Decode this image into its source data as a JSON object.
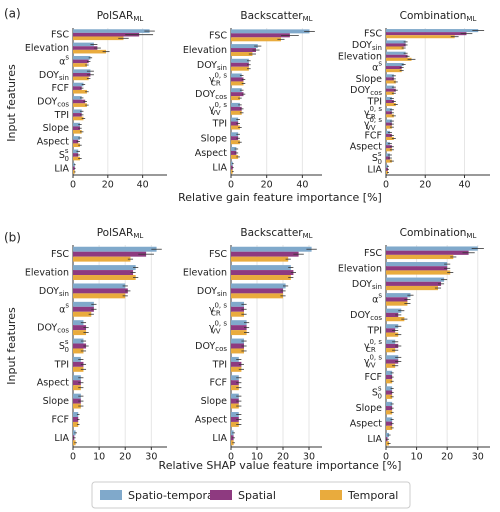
{
  "figure": {
    "rows": [
      {
        "panel_label": "(a)",
        "xlabel": "Relative gain feature importance [%]",
        "ylabel": "Input features"
      },
      {
        "panel_label": "(b)",
        "xlabel": "Relative SHAP value feature importance [%]",
        "ylabel": "Input features"
      }
    ]
  },
  "chart_data": [
    {
      "type": "hbar",
      "title": {
        "base": "PolSAR",
        "sub": "ML"
      },
      "categories": [
        {
          "base": "FSC"
        },
        {
          "base": "Elevation"
        },
        {
          "base": "α",
          "sup": "s"
        },
        {
          "base": "DOY",
          "sub": "sin"
        },
        {
          "base": "FCF"
        },
        {
          "base": "DOY",
          "sub": "cos"
        },
        {
          "base": "TPI"
        },
        {
          "base": "Slope"
        },
        {
          "base": "Aspect"
        },
        {
          "base": "S",
          "sub": "0",
          "sup": "s"
        },
        {
          "base": "LIA"
        }
      ],
      "series": [
        {
          "name": "Spatio-temporal",
          "color": "#80a9cb",
          "values": [
            44,
            12,
            10,
            10,
            6,
            5,
            5,
            4,
            4,
            3,
            1
          ],
          "errors": [
            3,
            2,
            1,
            2,
            1,
            1,
            1,
            1,
            1,
            1,
            0.5
          ]
        },
        {
          "name": "Spatial",
          "color": "#8e3a80",
          "values": [
            38,
            14,
            9,
            10,
            5,
            7,
            5,
            4,
            3,
            3,
            1
          ],
          "errors": [
            8,
            2,
            1,
            2,
            1,
            1,
            1,
            1,
            1,
            1,
            0.5
          ]
        },
        {
          "name": "Temporal",
          "color": "#e9ab3d",
          "values": [
            29,
            19,
            8,
            9,
            8,
            8,
            6,
            5,
            4,
            4,
            1
          ],
          "errors": [
            3,
            2,
            1,
            1,
            1,
            1,
            1,
            1,
            1,
            1,
            0.5
          ]
        }
      ],
      "xlim": [
        0,
        54
      ],
      "xticks": [
        0,
        20,
        40
      ],
      "grid": true
    },
    {
      "type": "hbar",
      "title": {
        "base": "Backscatter",
        "sub": "ML"
      },
      "categories": [
        {
          "base": "FSC"
        },
        {
          "base": "Elevation"
        },
        {
          "base": "DOY",
          "sub": "sin"
        },
        {
          "base": "γ",
          "sub": "CR",
          "sup": "0, s"
        },
        {
          "base": "DOY",
          "sub": "cos"
        },
        {
          "base": "γ",
          "sub": "VV",
          "sup": "0, s"
        },
        {
          "base": "TPI"
        },
        {
          "base": "Slope"
        },
        {
          "base": "Aspect"
        },
        {
          "base": "LIA"
        }
      ],
      "series": [
        {
          "name": "Spatio-temporal",
          "color": "#80a9cb",
          "values": [
            44,
            15,
            10,
            6,
            6,
            5,
            4,
            4,
            3,
            1
          ],
          "errors": [
            3,
            2,
            1,
            1,
            1,
            1,
            1,
            1,
            1,
            0.5
          ]
        },
        {
          "name": "Spatial",
          "color": "#8e3a80",
          "values": [
            33,
            14,
            10,
            7,
            7,
            6,
            4,
            4,
            3,
            1
          ],
          "errors": [
            5,
            2,
            1,
            1,
            1,
            1,
            1,
            1,
            1,
            0.5
          ]
        },
        {
          "name": "Temporal",
          "color": "#e9ab3d",
          "values": [
            28,
            12,
            10,
            7,
            5,
            6,
            5,
            5,
            4,
            1
          ],
          "errors": [
            2,
            2,
            1,
            1,
            1,
            1,
            1,
            1,
            1,
            0.5
          ]
        }
      ],
      "xlim": [
        0,
        51
      ],
      "xticks": [
        0,
        20,
        40
      ],
      "grid": true
    },
    {
      "type": "hbar",
      "title": {
        "base": "Combination",
        "sub": "ML"
      },
      "categories": [
        {
          "base": "FSC"
        },
        {
          "base": "DOY",
          "sub": "sin"
        },
        {
          "base": "Elevation"
        },
        {
          "base": "α",
          "sup": "s"
        },
        {
          "base": "Slope"
        },
        {
          "base": "DOY",
          "sub": "cos"
        },
        {
          "base": "TPI"
        },
        {
          "base": "γ",
          "sub": "CR",
          "sup": "0, s"
        },
        {
          "base": "γ",
          "sub": "VV",
          "sup": "0, s"
        },
        {
          "base": "FCF"
        },
        {
          "base": "Aspect"
        },
        {
          "base": "S",
          "sub": "0",
          "sup": "s"
        },
        {
          "base": "LIA"
        }
      ],
      "series": [
        {
          "name": "Spatio-temporal",
          "color": "#80a9cb",
          "values": [
            47,
            10,
            10,
            9,
            4,
            4,
            3,
            3,
            3,
            2,
            2,
            2,
            1
          ],
          "errors": [
            3,
            1,
            1,
            1,
            1,
            1,
            1,
            1,
            1,
            1,
            1,
            1,
            0.5
          ]
        },
        {
          "name": "Spatial",
          "color": "#8e3a80",
          "values": [
            41,
            10,
            11,
            8,
            4,
            5,
            4,
            3,
            3,
            3,
            3,
            2,
            1
          ],
          "errors": [
            3,
            1,
            1,
            1,
            1,
            1,
            1,
            1,
            1,
            1,
            1,
            1,
            0.5
          ]
        },
        {
          "name": "Temporal",
          "color": "#e9ab3d",
          "values": [
            35,
            9,
            13,
            8,
            5,
            4,
            5,
            4,
            3,
            4,
            3,
            3,
            1
          ],
          "errors": [
            2,
            1,
            2,
            1,
            1,
            1,
            1,
            1,
            1,
            1,
            1,
            1,
            0.5
          ]
        }
      ],
      "xlim": [
        0,
        53
      ],
      "xticks": [
        0,
        20,
        40
      ],
      "grid": true
    },
    {
      "type": "hbar",
      "title": {
        "base": "PolSAR",
        "sub": "ML"
      },
      "categories": [
        {
          "base": "FSC"
        },
        {
          "base": "Elevation"
        },
        {
          "base": "DOY",
          "sub": "sin"
        },
        {
          "base": "α",
          "sup": "s"
        },
        {
          "base": "DOY",
          "sub": "cos"
        },
        {
          "base": "S",
          "sub": "0",
          "sup": "s"
        },
        {
          "base": "TPI"
        },
        {
          "base": "Aspect"
        },
        {
          "base": "Slope"
        },
        {
          "base": "FCF"
        },
        {
          "base": "LIA"
        }
      ],
      "series": [
        {
          "name": "Spatio-temporal",
          "color": "#80a9cb",
          "values": [
            32,
            24,
            20,
            8,
            4,
            4,
            3,
            3,
            3,
            2,
            1
          ],
          "errors": [
            2,
            1,
            1,
            1,
            1,
            1,
            1,
            1,
            1,
            0.5,
            0.5
          ]
        },
        {
          "name": "Spatial",
          "color": "#8e3a80",
          "values": [
            28,
            23,
            21,
            8,
            5,
            5,
            4,
            3,
            3,
            2,
            0.5
          ],
          "errors": [
            3,
            1,
            1,
            1,
            1,
            1,
            1,
            1,
            1,
            0.5,
            0.5
          ]
        },
        {
          "name": "Temporal",
          "color": "#e9ab3d",
          "values": [
            22,
            24,
            20,
            7,
            5,
            4,
            4,
            3,
            3,
            2,
            1
          ],
          "errors": [
            1,
            1,
            1,
            1,
            1,
            1,
            1,
            1,
            1,
            0.5,
            0.5
          ]
        }
      ],
      "xlim": [
        0,
        36
      ],
      "xticks": [
        0,
        10,
        20,
        30
      ],
      "grid": true
    },
    {
      "type": "hbar",
      "title": {
        "base": "Backscatter",
        "sub": "ML"
      },
      "categories": [
        {
          "base": "FSC"
        },
        {
          "base": "Elevation"
        },
        {
          "base": "DOY",
          "sub": "sin"
        },
        {
          "base": "γ",
          "sub": "CR",
          "sup": "0, s"
        },
        {
          "base": "γ",
          "sub": "VV",
          "sup": "0, s"
        },
        {
          "base": "DOY",
          "sub": "cos"
        },
        {
          "base": "TPI"
        },
        {
          "base": "FCF"
        },
        {
          "base": "Slope"
        },
        {
          "base": "Aspect"
        },
        {
          "base": "LIA"
        }
      ],
      "series": [
        {
          "name": "Spatio-temporal",
          "color": "#80a9cb",
          "values": [
            31,
            23,
            21,
            5,
            6,
            5,
            3,
            3,
            3,
            3,
            1
          ],
          "errors": [
            2,
            1,
            1,
            1,
            1,
            1,
            1,
            1,
            1,
            1,
            0.5
          ]
        },
        {
          "name": "Spatial",
          "color": "#8e3a80",
          "values": [
            26,
            24,
            20,
            5,
            6,
            5,
            4,
            3,
            3,
            3,
            1
          ],
          "errors": [
            2,
            1,
            1,
            1,
            1,
            1,
            1,
            1,
            1,
            1,
            0.5
          ]
        },
        {
          "name": "Temporal",
          "color": "#e9ab3d",
          "values": [
            22,
            23,
            20,
            5,
            6,
            5,
            4,
            3,
            3,
            3,
            1
          ],
          "errors": [
            1,
            1,
            1,
            1,
            1,
            1,
            1,
            1,
            1,
            1,
            0.5
          ]
        }
      ],
      "xlim": [
        0,
        35
      ],
      "xticks": [
        0,
        10,
        20,
        30
      ],
      "grid": true
    },
    {
      "type": "hbar",
      "title": {
        "base": "Combination",
        "sub": "ML"
      },
      "categories": [
        {
          "base": "FSC"
        },
        {
          "base": "Elevation"
        },
        {
          "base": "DOY",
          "sub": "sin"
        },
        {
          "base": "α",
          "sup": "s"
        },
        {
          "base": "DOY",
          "sub": "cos"
        },
        {
          "base": "TPI"
        },
        {
          "base": "γ",
          "sub": "CR",
          "sup": "0, s"
        },
        {
          "base": "γ",
          "sub": "VV",
          "sup": "0, s"
        },
        {
          "base": "FCF"
        },
        {
          "base": "S",
          "sub": "0",
          "sup": "s"
        },
        {
          "base": "Slope"
        },
        {
          "base": "Aspect"
        },
        {
          "base": "LIA"
        }
      ],
      "series": [
        {
          "name": "Spatio-temporal",
          "color": "#80a9cb",
          "values": [
            30,
            20,
            19,
            8,
            5,
            4,
            3,
            4,
            2,
            2,
            2,
            2,
            1
          ],
          "errors": [
            2,
            1,
            1,
            1,
            1,
            1,
            1,
            1,
            0.5,
            0.5,
            0.5,
            0.5,
            0.5
          ]
        },
        {
          "name": "Spatial",
          "color": "#8e3a80",
          "values": [
            27,
            20,
            18,
            7,
            4,
            3,
            4,
            4,
            2,
            2,
            2,
            2,
            0.5
          ],
          "errors": [
            2,
            1,
            1,
            1,
            1,
            1,
            1,
            1,
            0.5,
            0.5,
            0.5,
            0.5,
            0.5
          ]
        },
        {
          "name": "Temporal",
          "color": "#e9ab3d",
          "values": [
            22,
            21,
            17,
            7,
            6,
            4,
            3,
            3,
            2,
            2,
            2,
            2,
            1
          ],
          "errors": [
            1,
            1,
            1,
            1,
            1,
            1,
            1,
            1,
            0.5,
            0.5,
            0.5,
            0.5,
            0.5
          ]
        }
      ],
      "xlim": [
        0,
        34
      ],
      "xticks": [
        0,
        10,
        20,
        30
      ],
      "grid": true
    }
  ]
}
